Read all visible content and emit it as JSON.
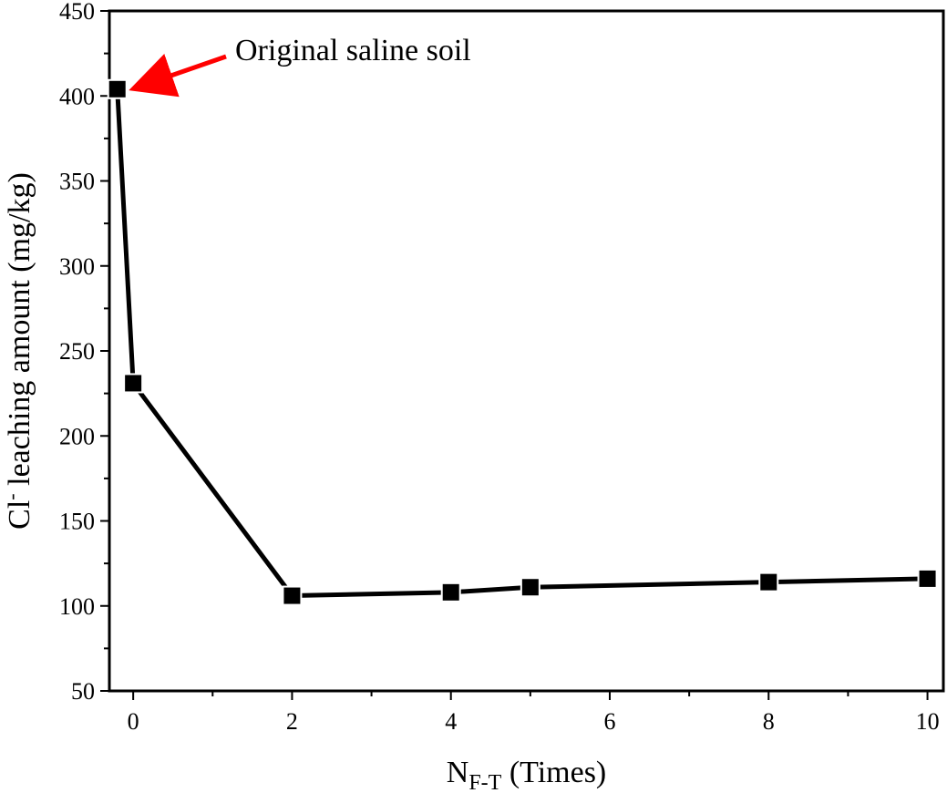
{
  "chart_data": {
    "type": "line",
    "title": "",
    "xlabel": {
      "main": "N",
      "sub": "F-T",
      "suffix": " (Times)"
    },
    "ylabel": {
      "main": "Cl",
      "sup": "-",
      "suffix": " leaching amount (mg/kg)"
    },
    "xlim": [
      -0.3,
      10.2
    ],
    "ylim": [
      50,
      450
    ],
    "xticks": [
      0,
      2,
      4,
      6,
      8,
      10
    ],
    "yticks": [
      50,
      100,
      150,
      200,
      250,
      300,
      350,
      400,
      450
    ],
    "grid": false,
    "legend": "none",
    "series": [
      {
        "x": [
          -0.2,
          0,
          2,
          4,
          5,
          8,
          10
        ],
        "y": [
          404,
          231,
          106,
          108,
          111,
          114,
          116
        ],
        "color": "#000000",
        "marker": "square"
      }
    ],
    "annotations": [
      {
        "text": "Original saline soil",
        "x": -0.2,
        "y": 404,
        "arrow_color": "#ff0000"
      }
    ]
  }
}
